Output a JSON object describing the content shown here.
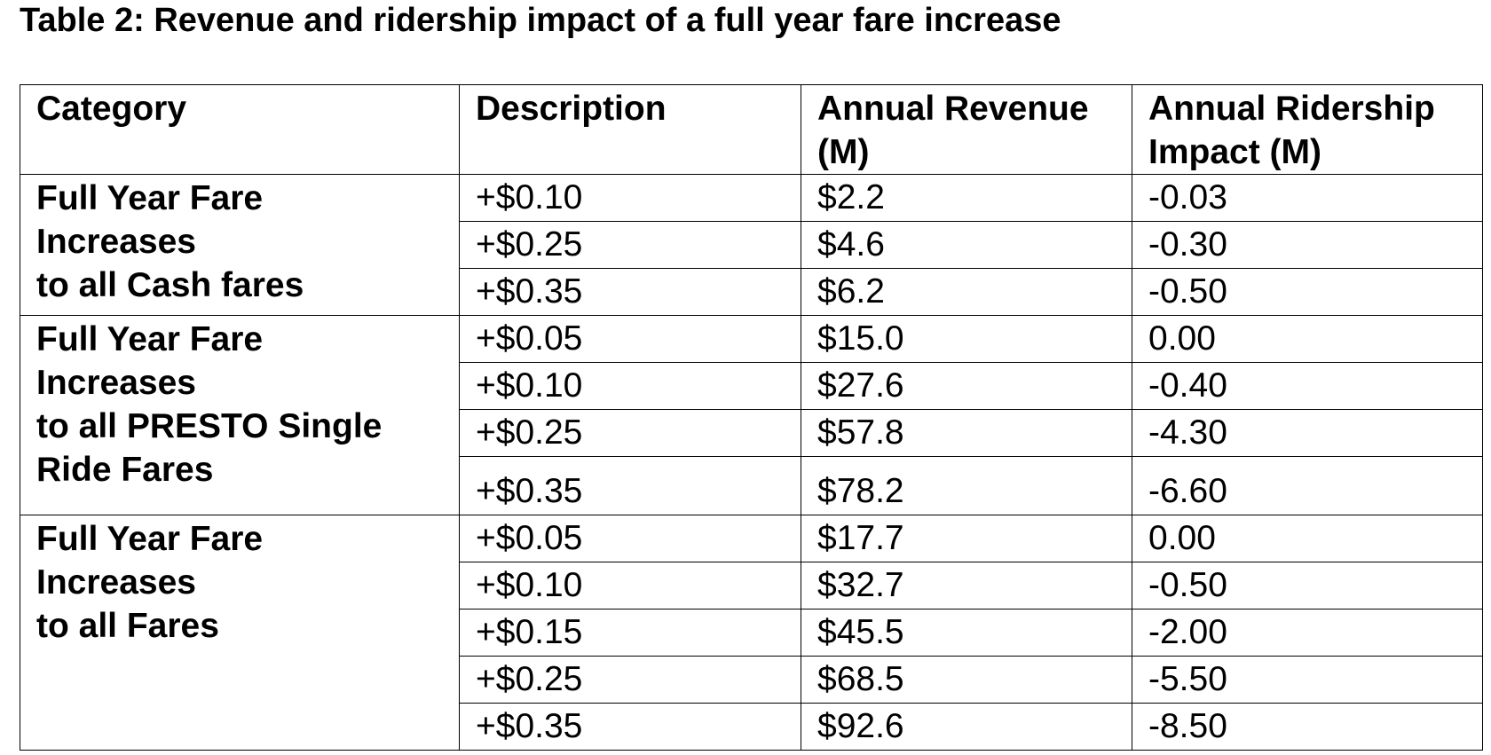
{
  "title": "Table 2: Revenue and ridership impact of a full year fare increase",
  "headers": {
    "category": "Category",
    "description": "Description",
    "revenue_line1": "Annual Revenue",
    "revenue_line2": "(M)",
    "ridership_line1": "Annual Ridership",
    "ridership_line2": "Impact (M)"
  },
  "groups": [
    {
      "category_lines": [
        "Full Year Fare",
        "Increases",
        "to all Cash fares"
      ],
      "rows": [
        {
          "description": "+$0.10",
          "revenue": "$2.2",
          "ridership": "-0.03"
        },
        {
          "description": "+$0.25",
          "revenue": "$4.6",
          "ridership": "-0.30"
        },
        {
          "description": "+$0.35",
          "revenue": "$6.2",
          "ridership": "-0.50"
        }
      ]
    },
    {
      "category_lines": [
        "Full Year Fare",
        "Increases",
        "to all PRESTO Single",
        "Ride Fares"
      ],
      "rows": [
        {
          "description": "+$0.05",
          "revenue": "$15.0",
          "ridership": "0.00"
        },
        {
          "description": "+$0.10",
          "revenue": "$27.6",
          "ridership": "-0.40"
        },
        {
          "description": "+$0.25",
          "revenue": "$57.8",
          "ridership": "-4.30"
        },
        {
          "description": "+$0.35",
          "revenue": "$78.2",
          "ridership": "-6.60"
        }
      ]
    },
    {
      "category_lines": [
        "Full Year Fare",
        "Increases",
        "to all Fares"
      ],
      "rows": [
        {
          "description": "+$0.05",
          "revenue": "$17.7",
          "ridership": "0.00"
        },
        {
          "description": "+$0.10",
          "revenue": "$32.7",
          "ridership": "-0.50"
        },
        {
          "description": "+$0.15",
          "revenue": "$45.5",
          "ridership": "-2.00"
        },
        {
          "description": "+$0.25",
          "revenue": "$68.5",
          "ridership": "-5.50"
        },
        {
          "description": "+$0.35",
          "revenue": "$92.6",
          "ridership": "-8.50"
        }
      ]
    }
  ]
}
